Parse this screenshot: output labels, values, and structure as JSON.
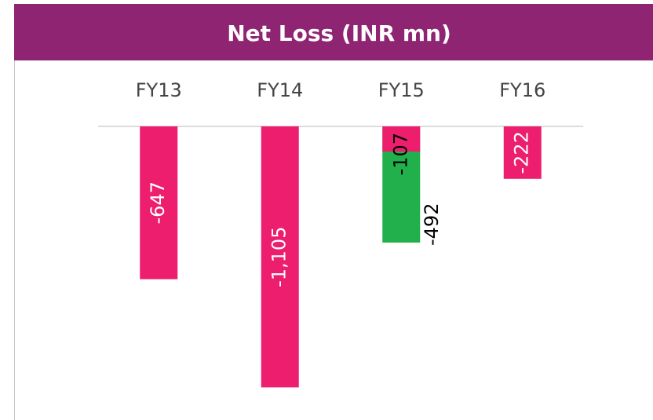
{
  "chart_data": {
    "type": "bar",
    "title": "Net Loss (INR mn)",
    "categories": [
      "FY13",
      "FY14",
      "FY15",
      "FY16"
    ],
    "series": [
      {
        "color": "#21b04b",
        "values": [
          null,
          null,
          -492,
          null
        ]
      },
      {
        "color": "#ed1e6e",
        "values": [
          -647,
          -1105,
          -107,
          -222
        ],
        "value_labels": [
          "-647",
          "-1,105",
          "-107",
          "-222"
        ]
      }
    ],
    "ylim": [
      -1200,
      0
    ]
  }
}
